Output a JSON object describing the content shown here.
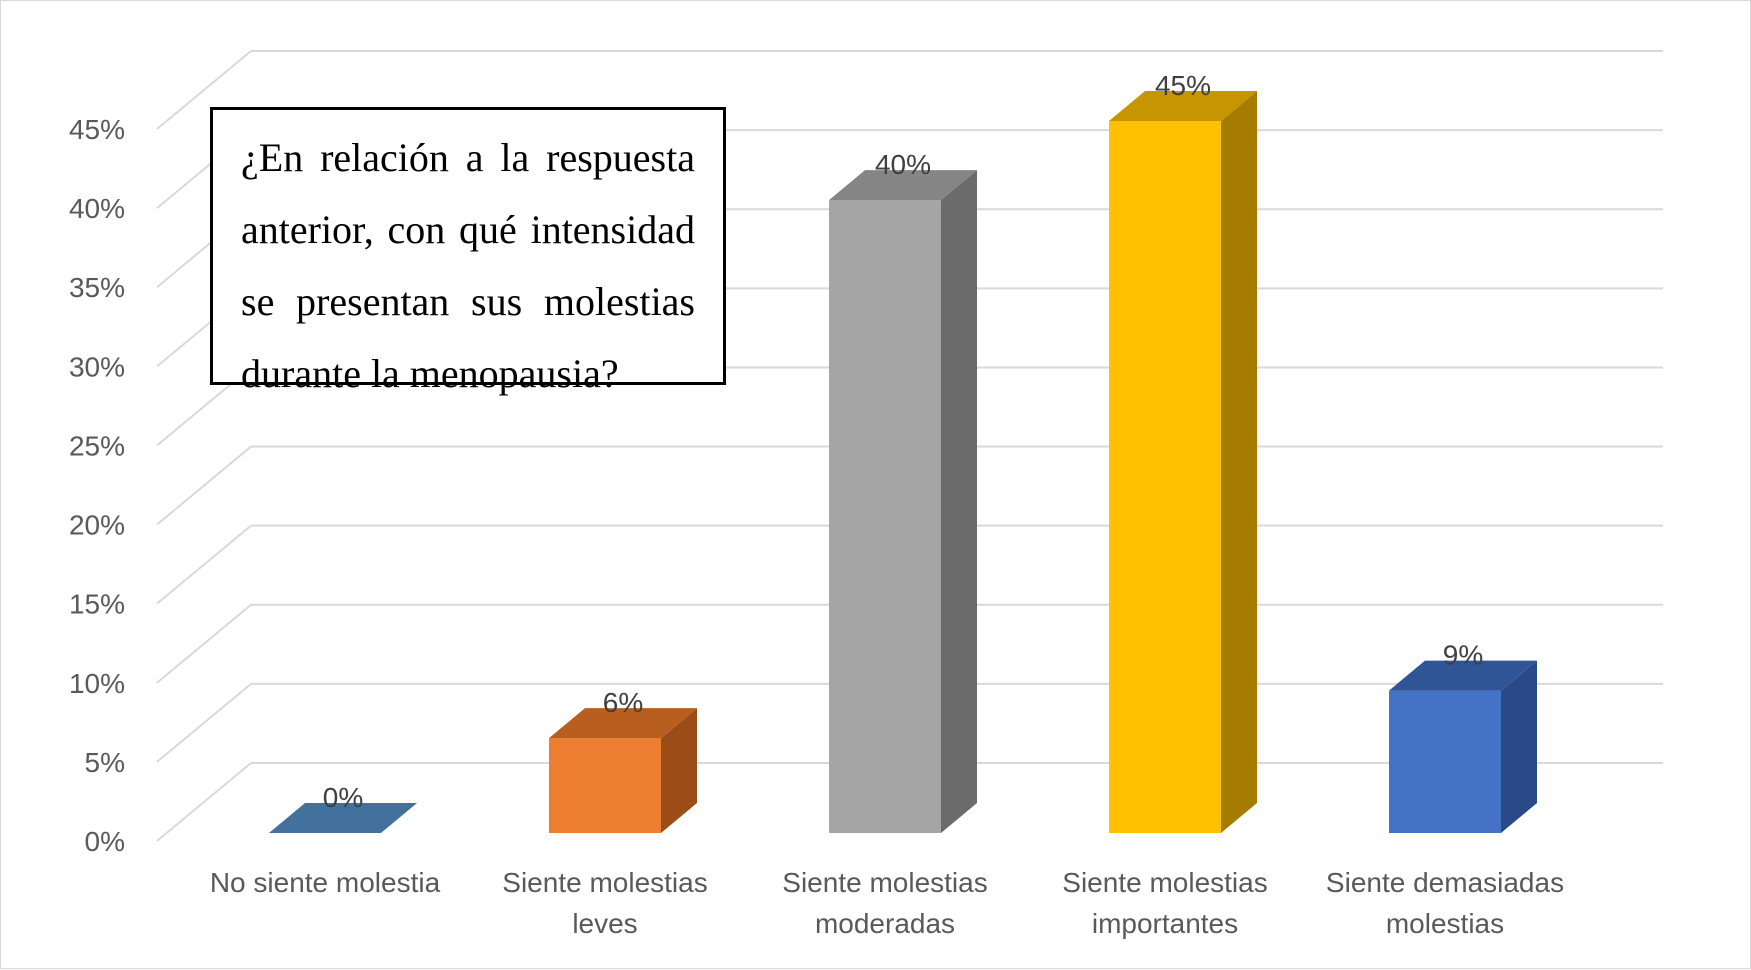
{
  "chart_data": {
    "type": "bar",
    "style": "3d-column",
    "title": "¿En relación a la respuesta anterior, con qué intensidad se presentan sus molestias durante la menopausia?",
    "categories": [
      [
        "No siente molestia"
      ],
      [
        "Siente molestias",
        "leves"
      ],
      [
        "Siente molestias",
        "moderadas"
      ],
      [
        "Siente molestias",
        "importantes"
      ],
      [
        "Siente demasiadas",
        "molestias"
      ]
    ],
    "values": [
      0,
      6,
      40,
      45,
      9
    ],
    "data_labels": [
      "0%",
      "6%",
      "40%",
      "45%",
      "9%"
    ],
    "colors": [
      "#4472c4",
      "#ed7d31",
      "#a5a5a5",
      "#ffc000",
      "#4472c4"
    ],
    "side_colors": [
      "#2f5597",
      "#9c4d17",
      "#6b6b6b",
      "#a67c00",
      "#2a4a87"
    ],
    "top_colors": [
      "#41719c",
      "#b85f20",
      "#858585",
      "#c79500",
      "#2f5597"
    ],
    "ylim": [
      0,
      45
    ],
    "yticks": [
      "0%",
      "5%",
      "10%",
      "15%",
      "20%",
      "25%",
      "30%",
      "35%",
      "40%",
      "45%"
    ],
    "ytick_values": [
      0,
      5,
      10,
      15,
      20,
      25,
      30,
      35,
      40,
      45
    ],
    "grid": true,
    "legend": "none"
  }
}
